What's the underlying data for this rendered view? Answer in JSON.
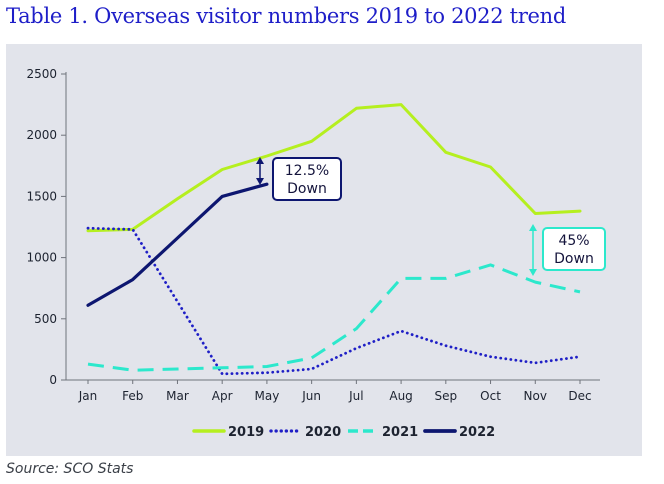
{
  "title": "Table 1. Overseas visitor numbers 2019 to 2022 trend",
  "source": "Source: SCO Stats",
  "colors": {
    "2019": "#b5ef1f",
    "2020": "#1f1fc6",
    "2021": "#2ce8cc",
    "2022": "#0d1670",
    "panel": "#e2e4eb"
  },
  "chart_data": {
    "type": "line",
    "categories": [
      "Jan",
      "Feb",
      "Mar",
      "Apr",
      "May",
      "Jun",
      "Jul",
      "Aug",
      "Sep",
      "Oct",
      "Nov",
      "Dec"
    ],
    "yticks": [
      "0",
      "500",
      "1000",
      "1500",
      "2000",
      "2500"
    ],
    "ylim": [
      0,
      2500
    ],
    "grid": false,
    "legend_position": "bottom",
    "series": [
      {
        "name": "2019",
        "style": "solid",
        "values": [
          1220,
          1230,
          1480,
          1720,
          1830,
          1950,
          2220,
          2250,
          1860,
          1740,
          1360,
          1380
        ]
      },
      {
        "name": "2020",
        "style": "dotted",
        "values": [
          1240,
          1230,
          null,
          50,
          60,
          90,
          260,
          400,
          280,
          190,
          140,
          190
        ]
      },
      {
        "name": "2021",
        "style": "dashed",
        "values": [
          130,
          80,
          90,
          100,
          110,
          180,
          420,
          830,
          830,
          940,
          800,
          720
        ]
      },
      {
        "name": "2022",
        "style": "solid-thick",
        "values": [
          610,
          820,
          1160,
          1500,
          1600,
          null,
          null,
          null,
          null,
          null,
          null,
          null
        ]
      }
    ],
    "annotations": [
      {
        "text1": "12.5%",
        "text2": "Down"
      },
      {
        "text1": "45%",
        "text2": "Down"
      }
    ]
  }
}
